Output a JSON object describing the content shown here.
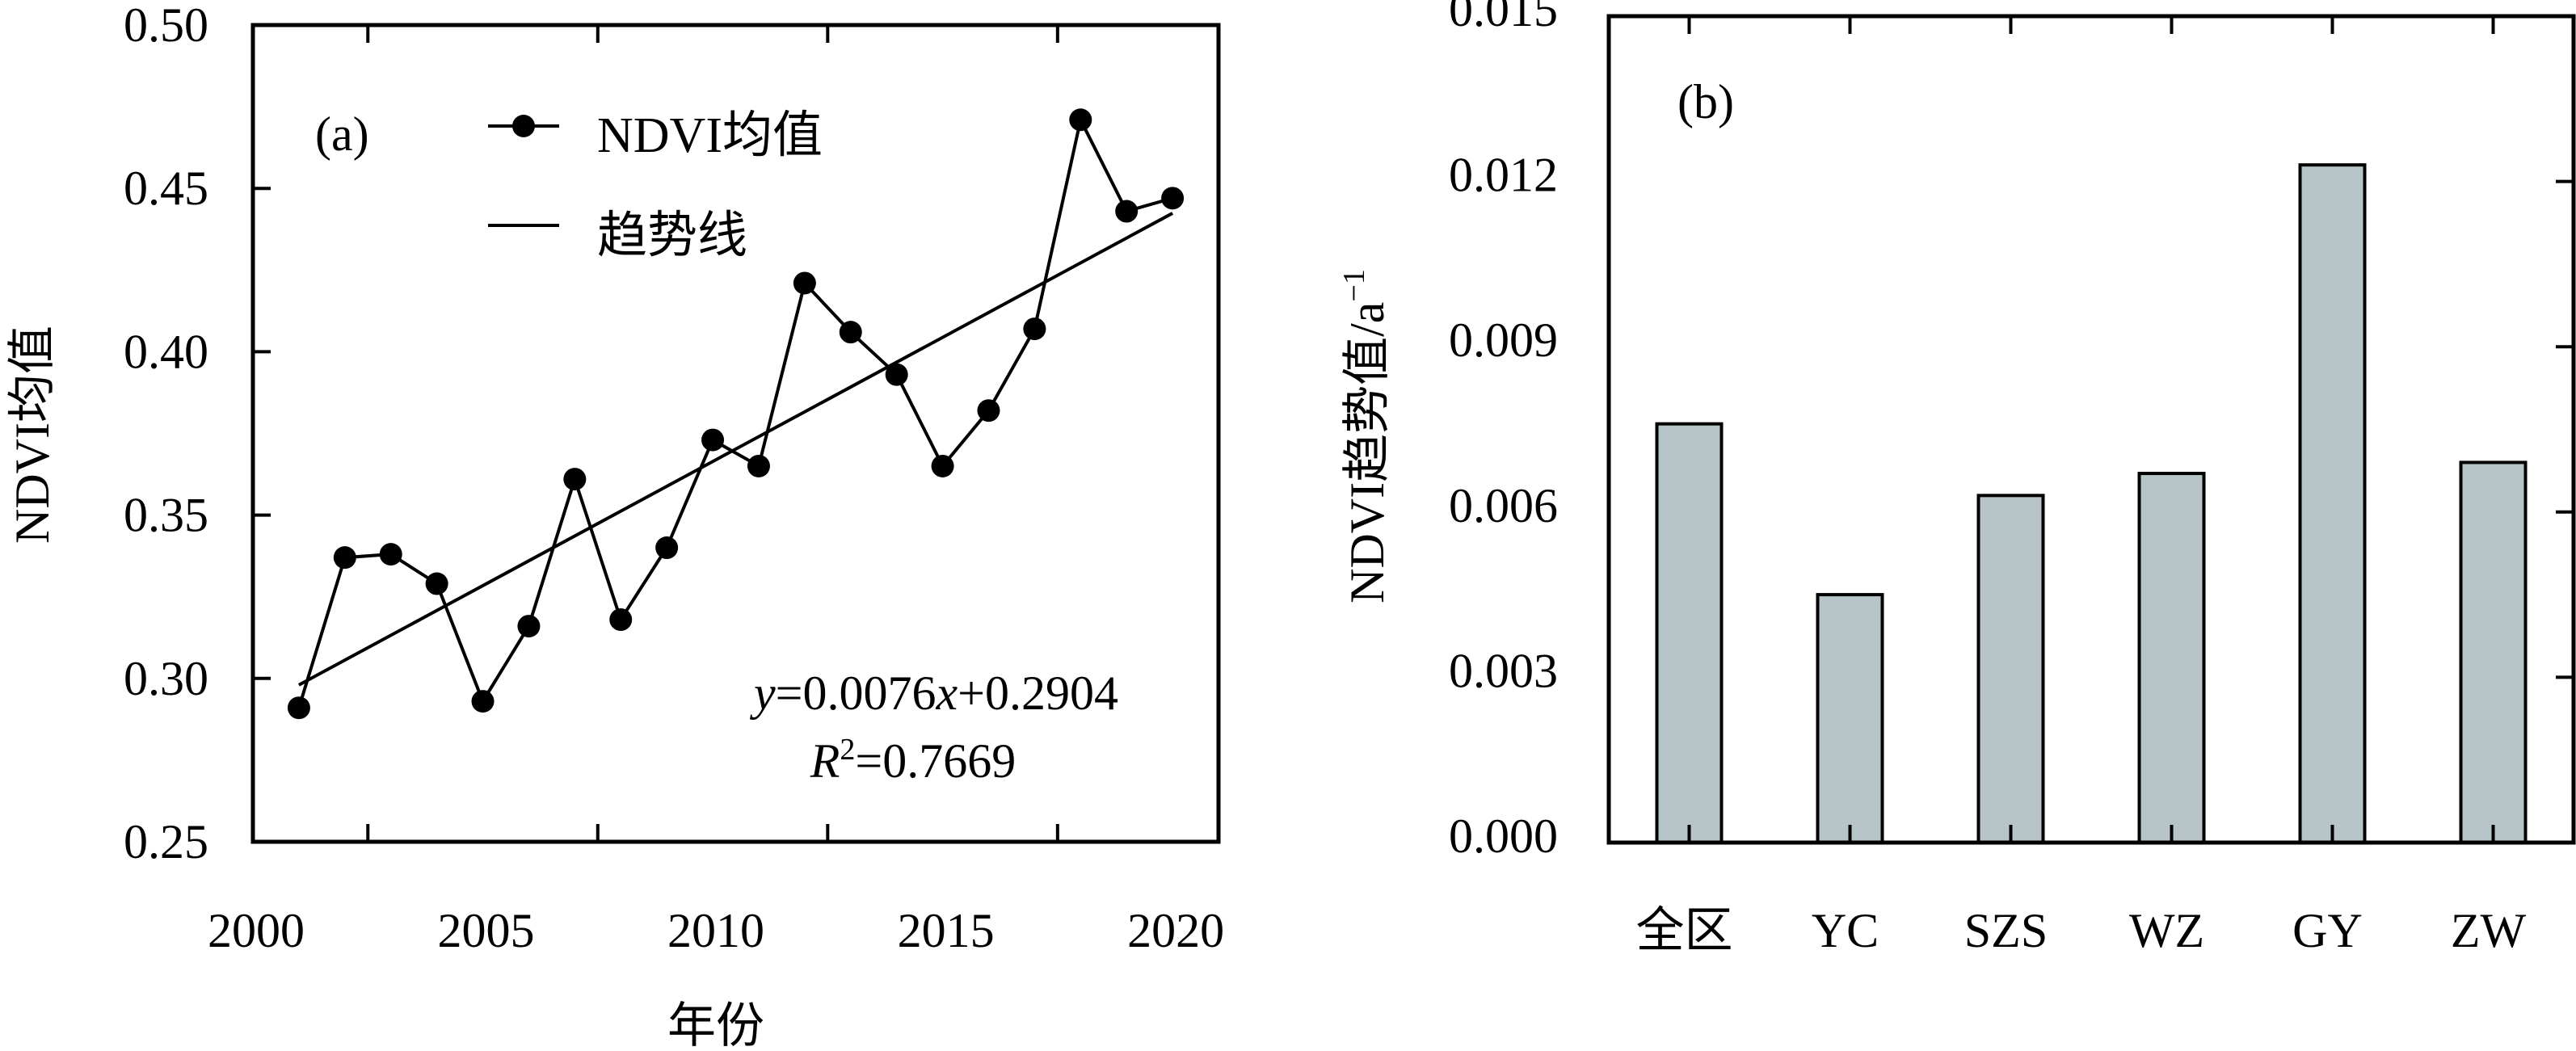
{
  "colors": {
    "line": "#000000",
    "bar_fill": "#b8c5c8",
    "bar_stroke": "#000000",
    "background": "#ffffff"
  },
  "chart_data": [
    {
      "type": "line",
      "panel_tag": "(a)",
      "title": "",
      "xlabel": "年份",
      "ylabel": "NDVI均值",
      "xlim": [
        2000,
        2021
      ],
      "ylim": [
        0.25,
        0.5
      ],
      "x_tick_labels": [
        "2000",
        "2005",
        "2010",
        "2015",
        "2020"
      ],
      "x_tick_values": [
        2000,
        2005,
        2010,
        2015,
        2020
      ],
      "x_tick_marks": [
        2002.5,
        2007.5,
        2012.5,
        2017.5
      ],
      "y_ticks": [
        0.25,
        0.3,
        0.35,
        0.4,
        0.45,
        0.5
      ],
      "y_tick_labels": [
        "0.25",
        "0.30",
        "0.35",
        "0.40",
        "0.45",
        "0.50"
      ],
      "grid": false,
      "legend_position": "top",
      "legend": [
        "NDVI均值",
        "趋势线"
      ],
      "series": [
        {
          "name": "NDVI均值",
          "marker": "circle",
          "x": [
            2001,
            2002,
            2003,
            2004,
            2005,
            2006,
            2007,
            2008,
            2009,
            2010,
            2011,
            2012,
            2013,
            2014,
            2015,
            2016,
            2017,
            2018,
            2019,
            2020
          ],
          "y": [
            0.291,
            0.337,
            0.338,
            0.329,
            0.293,
            0.316,
            0.361,
            0.318,
            0.34,
            0.373,
            0.365,
            0.421,
            0.406,
            0.393,
            0.365,
            0.382,
            0.407,
            0.471,
            0.443,
            0.447
          ]
        },
        {
          "name": "趋势线",
          "type": "linear-fit",
          "slope": 0.0076,
          "intercept": 0.2904,
          "x_start": 2001,
          "x_end": 2020,
          "x_origin": 2000
        }
      ],
      "annotations": {
        "equation": {
          "y": "y",
          "eq1": "=0.0076",
          "x": "x",
          "eq2": "+0.2904"
        },
        "r2": {
          "R": "R",
          "sup": "2",
          "value": "=0.7669"
        }
      }
    },
    {
      "type": "bar",
      "panel_tag": "(b)",
      "title": "",
      "xlabel": "",
      "ylabel": "NDVI趋势值/a",
      "ylabel_sup": "−1",
      "categories": [
        "全区",
        "YC",
        "SZS",
        "WZ",
        "GY",
        "ZW"
      ],
      "values": [
        0.0076,
        0.0045,
        0.0063,
        0.0067,
        0.0123,
        0.0069
      ],
      "ylim": [
        0.0,
        0.015
      ],
      "y_ticks": [
        0.0,
        0.003,
        0.006,
        0.009,
        0.012,
        0.015
      ],
      "y_tick_labels": [
        "0.000",
        "0.003",
        "0.006",
        "0.009",
        "0.012",
        "0.015"
      ],
      "grid": false
    }
  ]
}
